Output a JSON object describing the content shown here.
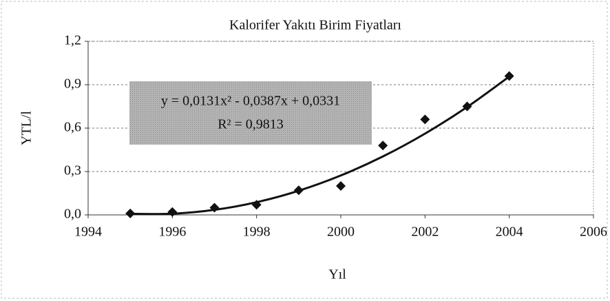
{
  "chart_data": {
    "type": "scatter",
    "title": "Kalorifer Yakıtı Birim Fiyatları",
    "xlabel": "Yıl",
    "ylabel": "YTL/l",
    "series": [
      {
        "color": "#111111",
        "x": [
          1995,
          1996,
          1997,
          1998,
          1999,
          2000,
          2001,
          2002,
          2003,
          2004
        ],
        "values": [
          0.01,
          0.02,
          0.05,
          0.07,
          0.17,
          0.2,
          0.48,
          0.66,
          0.75,
          0.96
        ]
      }
    ],
    "trendline": {
      "color": "#111111",
      "x": [
        1995,
        1996,
        1997,
        1998,
        1999,
        2000,
        2001,
        2002,
        2003,
        2004
      ],
      "values": [
        0.0075,
        0.0081,
        0.0349,
        0.0879,
        0.1671,
        0.2725,
        0.4041,
        0.5619,
        0.7459,
        0.9561
      ]
    },
    "annotations": [
      "y = 0,0131x² - 0,0387x + 0,0331",
      "R² = 0,9813"
    ],
    "xlim": [
      1994,
      2006
    ],
    "xticks": [
      1994,
      1996,
      1998,
      2000,
      2002,
      2004,
      2006
    ],
    "ylim": [
      0,
      1.2
    ],
    "yticks": [
      {
        "value": 0,
        "label": "0,0"
      },
      {
        "value": 0.3,
        "label": "0,3"
      },
      {
        "value": 0.6,
        "label": "0,6"
      },
      {
        "value": 0.9,
        "label": "0,9"
      },
      {
        "value": 1.2,
        "label": "1,2"
      }
    ],
    "grid": true
  }
}
